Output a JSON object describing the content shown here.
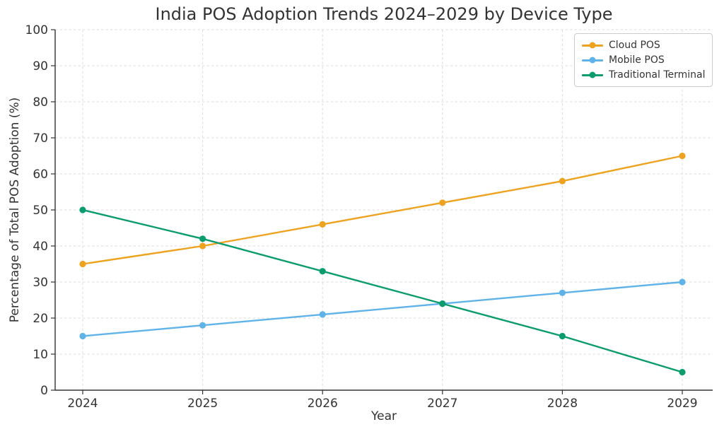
{
  "chart_data": {
    "type": "line",
    "title": "India POS Adoption Trends 2024–2029 by Device Type",
    "xlabel": "Year",
    "ylabel": "Percentage of Total POS Adoption (%)",
    "x": [
      "2024",
      "2025",
      "2026",
      "2027",
      "2028",
      "2029"
    ],
    "series": [
      {
        "name": "Cloud POS",
        "color": "#EEA320",
        "values": [
          35,
          40,
          46,
          52,
          58,
          65
        ]
      },
      {
        "name": "Mobile POS",
        "color": "#5FB3E8",
        "values": [
          15,
          18,
          21,
          24,
          27,
          30
        ]
      },
      {
        "name": "Traditional Terminal",
        "color": "#0B9C6E",
        "values": [
          50,
          42,
          33,
          24,
          15,
          5
        ]
      }
    ],
    "ylim": [
      0,
      100
    ],
    "yticks": [
      0,
      10,
      20,
      30,
      40,
      50,
      60,
      70,
      80,
      90,
      100
    ],
    "grid": true,
    "grid_style": "dashed",
    "legend_position": "upper right",
    "marker": "circle",
    "spines": [
      "left",
      "bottom"
    ]
  }
}
